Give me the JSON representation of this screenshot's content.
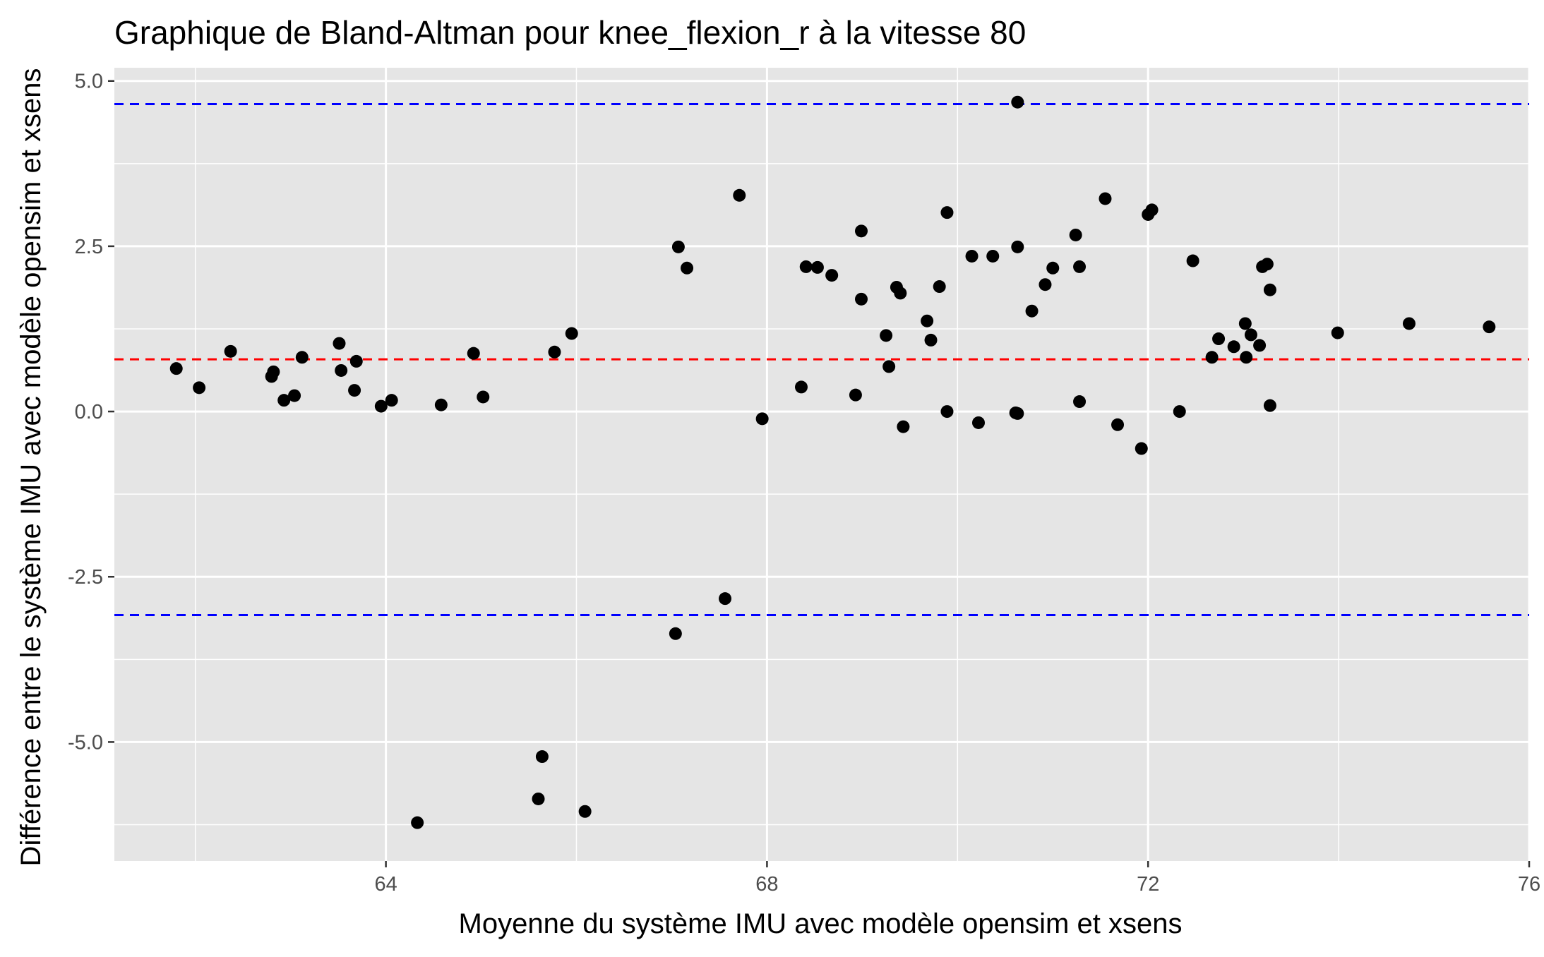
{
  "chart_data": {
    "type": "scatter",
    "title": "Graphique de Bland-Altman pour knee_flexion_r à la vitesse 80",
    "xlabel": "Moyenne du système IMU avec modèle opensim et xsens",
    "ylabel": "Différence entre le système IMU avec modèle opensim et xsens",
    "xlim": [
      61.15,
      76.0
    ],
    "ylim": [
      -6.8,
      5.2
    ],
    "x_ticks": [
      {
        "value": 64,
        "label": "64"
      },
      {
        "value": 68,
        "label": "68"
      },
      {
        "value": 72,
        "label": "72"
      },
      {
        "value": 76,
        "label": "76"
      }
    ],
    "y_ticks": [
      {
        "value": 5.0,
        "label": "5.0"
      },
      {
        "value": 2.5,
        "label": "2.5"
      },
      {
        "value": 0.0,
        "label": "0.0"
      },
      {
        "value": -2.5,
        "label": "-2.5"
      },
      {
        "value": -5.0,
        "label": "-5.0"
      }
    ],
    "x_minor_gridlines": [
      62,
      66,
      70,
      74
    ],
    "y_minor_gridlines": [
      3.75,
      1.25,
      -1.25,
      -3.75,
      -6.25
    ],
    "grid": true,
    "background": "#e5e5e5",
    "gridline_color": "#ffffff",
    "point_color": "#000000",
    "reference_lines": [
      {
        "label": "upper_limit",
        "y": 4.65,
        "color": "#0000ff",
        "dash": "dashed"
      },
      {
        "label": "mean_difference",
        "y": 0.79,
        "color": "#ff0000",
        "dash": "dashed"
      },
      {
        "label": "lower_limit",
        "y": -3.08,
        "color": "#0000ff",
        "dash": "dashed"
      }
    ],
    "points": [
      {
        "x": 61.8,
        "y": 0.65
      },
      {
        "x": 62.04,
        "y": 0.36
      },
      {
        "x": 62.37,
        "y": 0.91
      },
      {
        "x": 62.8,
        "y": 0.53
      },
      {
        "x": 62.82,
        "y": 0.6
      },
      {
        "x": 62.93,
        "y": 0.17
      },
      {
        "x": 63.04,
        "y": 0.24
      },
      {
        "x": 63.12,
        "y": 0.82
      },
      {
        "x": 63.51,
        "y": 1.03
      },
      {
        "x": 63.53,
        "y": 0.62
      },
      {
        "x": 63.67,
        "y": 0.32
      },
      {
        "x": 63.69,
        "y": 0.76
      },
      {
        "x": 63.95,
        "y": 0.08
      },
      {
        "x": 64.06,
        "y": 0.17
      },
      {
        "x": 64.33,
        "y": -6.22
      },
      {
        "x": 64.58,
        "y": 0.1
      },
      {
        "x": 64.92,
        "y": 0.88
      },
      {
        "x": 65.02,
        "y": 0.22
      },
      {
        "x": 65.6,
        "y": -5.86
      },
      {
        "x": 65.64,
        "y": -5.22
      },
      {
        "x": 65.77,
        "y": 0.9
      },
      {
        "x": 65.95,
        "y": 1.18
      },
      {
        "x": 66.09,
        "y": -6.05
      },
      {
        "x": 67.04,
        "y": -3.36
      },
      {
        "x": 67.07,
        "y": 2.49
      },
      {
        "x": 67.16,
        "y": 2.17
      },
      {
        "x": 67.56,
        "y": -2.83
      },
      {
        "x": 67.71,
        "y": 3.27
      },
      {
        "x": 67.95,
        "y": -0.11
      },
      {
        "x": 68.36,
        "y": 0.37
      },
      {
        "x": 68.41,
        "y": 2.19
      },
      {
        "x": 68.53,
        "y": 2.18
      },
      {
        "x": 68.68,
        "y": 2.06
      },
      {
        "x": 68.93,
        "y": 0.25
      },
      {
        "x": 68.99,
        "y": 2.73
      },
      {
        "x": 68.99,
        "y": 1.7
      },
      {
        "x": 69.25,
        "y": 1.15
      },
      {
        "x": 69.28,
        "y": 0.68
      },
      {
        "x": 69.36,
        "y": 1.88
      },
      {
        "x": 69.4,
        "y": 1.79
      },
      {
        "x": 69.43,
        "y": -0.23
      },
      {
        "x": 69.68,
        "y": 1.37
      },
      {
        "x": 69.72,
        "y": 1.08
      },
      {
        "x": 69.81,
        "y": 1.89
      },
      {
        "x": 69.89,
        "y": 3.01
      },
      {
        "x": 69.89,
        "y": 0.0
      },
      {
        "x": 70.22,
        "y": -0.17
      },
      {
        "x": 70.15,
        "y": 2.35
      },
      {
        "x": 70.37,
        "y": 2.35
      },
      {
        "x": 70.61,
        "y": -0.02
      },
      {
        "x": 70.63,
        "y": -0.03
      },
      {
        "x": 70.63,
        "y": 4.68
      },
      {
        "x": 70.63,
        "y": 2.49
      },
      {
        "x": 70.78,
        "y": 1.52
      },
      {
        "x": 70.92,
        "y": 1.92
      },
      {
        "x": 71.0,
        "y": 2.17
      },
      {
        "x": 71.24,
        "y": 2.67
      },
      {
        "x": 71.28,
        "y": 0.15
      },
      {
        "x": 71.28,
        "y": 2.19
      },
      {
        "x": 71.55,
        "y": 3.22
      },
      {
        "x": 71.68,
        "y": -0.2
      },
      {
        "x": 71.93,
        "y": -0.56
      },
      {
        "x": 72.0,
        "y": 2.98
      },
      {
        "x": 72.04,
        "y": 3.05
      },
      {
        "x": 72.33,
        "y": 0.0
      },
      {
        "x": 72.47,
        "y": 2.28
      },
      {
        "x": 72.67,
        "y": 0.82
      },
      {
        "x": 72.74,
        "y": 1.1
      },
      {
        "x": 72.9,
        "y": 0.98
      },
      {
        "x": 73.02,
        "y": 1.33
      },
      {
        "x": 73.03,
        "y": 0.82
      },
      {
        "x": 73.08,
        "y": 1.16
      },
      {
        "x": 73.17,
        "y": 1.0
      },
      {
        "x": 73.2,
        "y": 2.19
      },
      {
        "x": 73.25,
        "y": 2.23
      },
      {
        "x": 73.28,
        "y": 1.84
      },
      {
        "x": 73.28,
        "y": 0.09
      },
      {
        "x": 73.99,
        "y": 1.19
      },
      {
        "x": 74.74,
        "y": 1.33
      },
      {
        "x": 75.58,
        "y": 1.28
      }
    ]
  }
}
